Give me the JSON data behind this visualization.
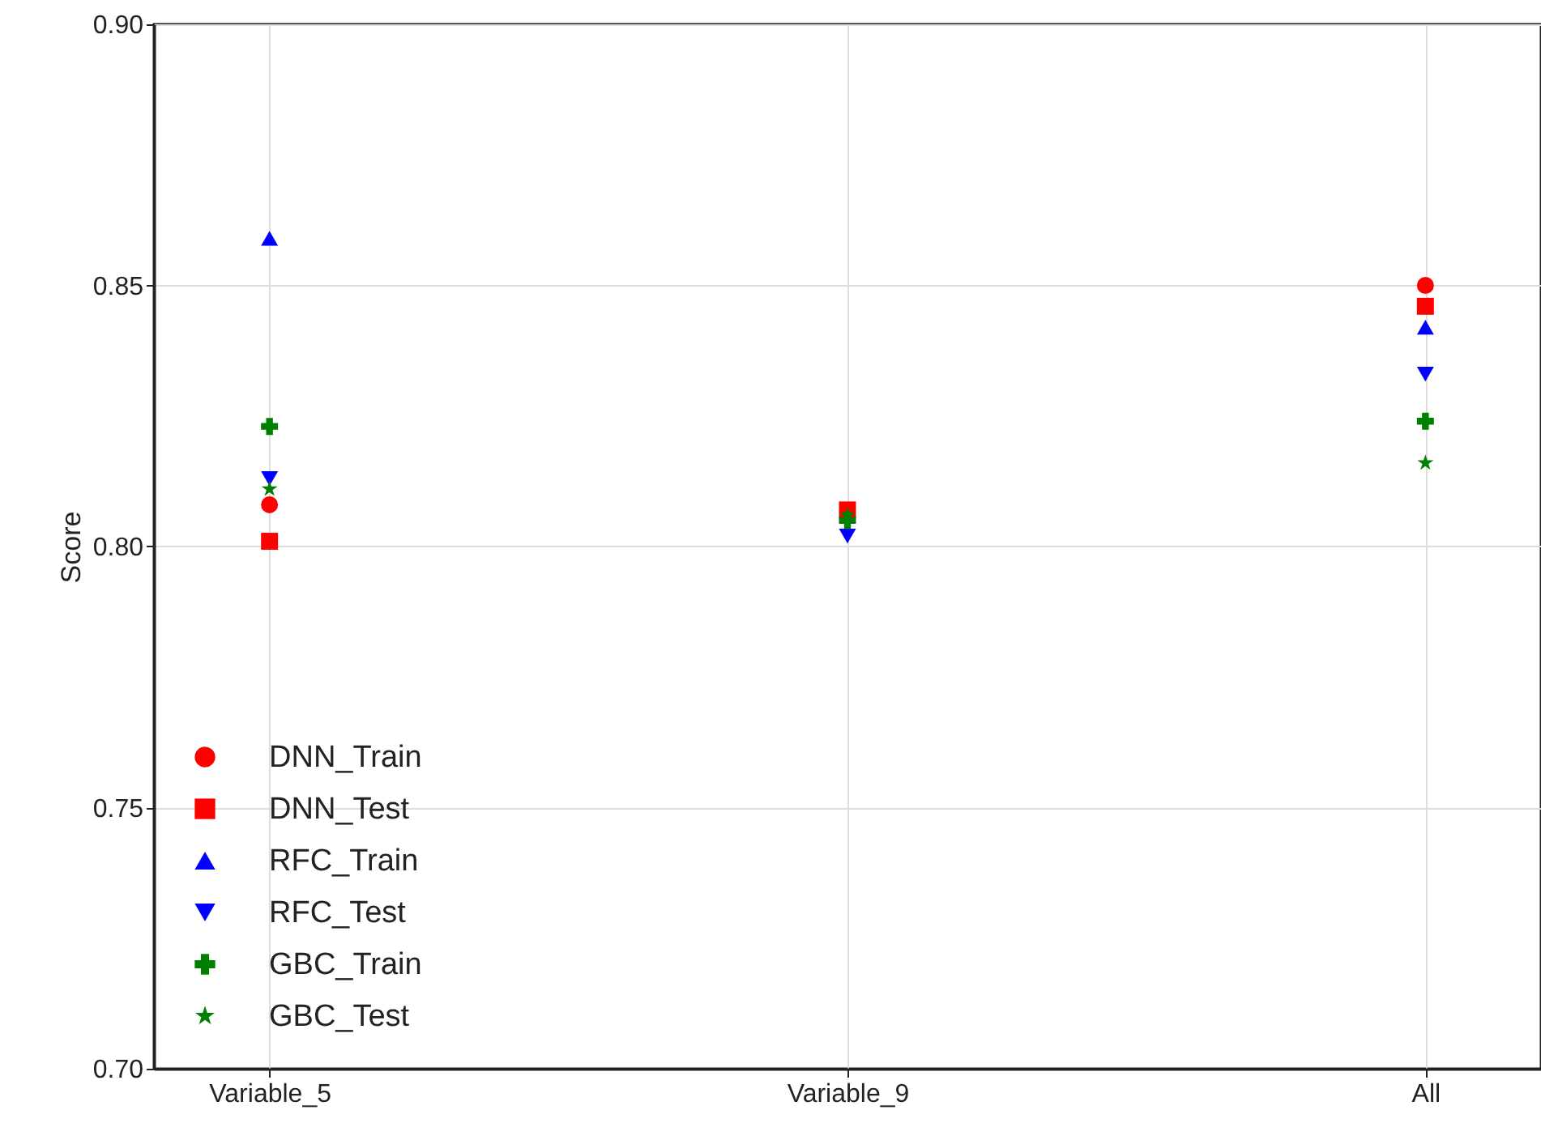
{
  "chart_data": {
    "type": "scatter",
    "ylabel": "Score",
    "categories": [
      "Variable_5",
      "Variable_9",
      "All"
    ],
    "ylim": [
      0.7,
      0.9
    ],
    "yticks": [
      {
        "value": 0.7,
        "label": "0.70"
      },
      0.75,
      {
        "value": 0.8,
        "label": "0.80"
      },
      0.85,
      {
        "value": 0.9,
        "label": "0.90"
      }
    ],
    "grid": true,
    "legend": "bottom left",
    "series": [
      {
        "name": "DNN_Train",
        "color": "#ff0000",
        "marker": "circle",
        "values": [
          0.808,
          null,
          0.85
        ]
      },
      {
        "name": "DNN_Test",
        "color": "#ff0000",
        "marker": "square",
        "values": [
          0.801,
          0.807,
          0.846
        ]
      },
      {
        "name": "RFC_Train",
        "color": "#0000ff",
        "marker": "triangle",
        "values": [
          0.859,
          null,
          0.842
        ]
      },
      {
        "name": "RFC_Test",
        "color": "#0000ff",
        "marker": "triangle-down",
        "values": [
          0.813,
          0.802,
          0.833
        ]
      },
      {
        "name": "GBC_Train",
        "color": "#008000",
        "marker": "cross",
        "values": [
          0.823,
          0.805,
          0.824
        ]
      },
      {
        "name": "GBC_Test",
        "color": "#008000",
        "marker": "star",
        "values": [
          0.811,
          0.806,
          0.816
        ]
      }
    ]
  }
}
